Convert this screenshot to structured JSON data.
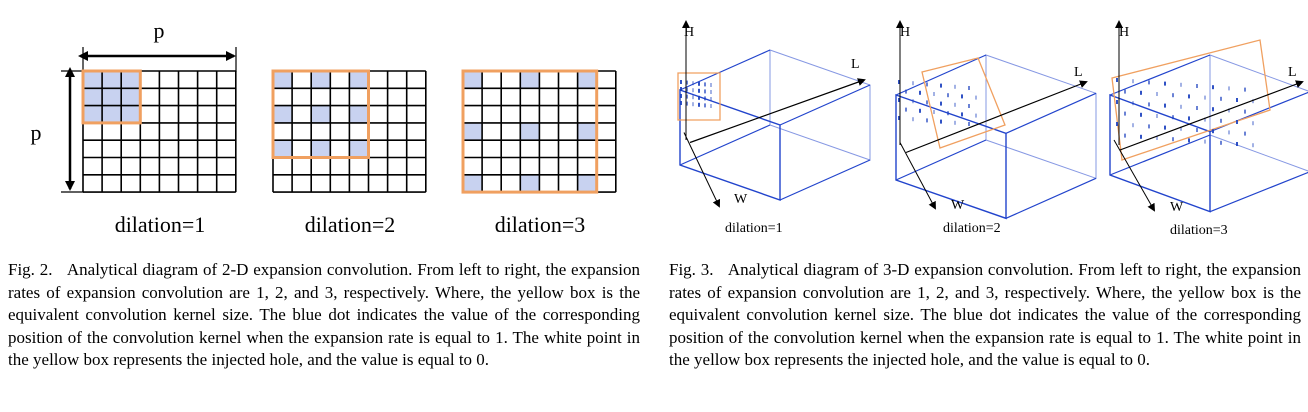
{
  "fig2": {
    "dim_label_top": "p",
    "dim_label_left": "p",
    "panels": [
      {
        "label": "dilation=1",
        "rate": 1
      },
      {
        "label": "dilation=2",
        "rate": 2
      },
      {
        "label": "dilation=3",
        "rate": 3
      }
    ],
    "caption_label": "Fig. 2.",
    "caption_text": "Analytical diagram of 2-D expansion convolution. From left to right, the expansion rates of expansion convolution are 1, 2, and 3, respectively. Where, the yellow box is the equivalent convolution kernel size. The blue dot indicates the value of the corresponding position of the convolution kernel when the expansion rate is equal to 1. The white point in the yellow box represents the injected hole, and the value is equal to 0."
  },
  "fig3": {
    "panels": [
      {
        "label": "dilation=1",
        "axis_h": "H",
        "axis_l": "L",
        "axis_w": "W"
      },
      {
        "label": "dilation=2",
        "axis_h": "H",
        "axis_l": "L",
        "axis_w": "W"
      },
      {
        "label": "dilation=3",
        "axis_h": "H",
        "axis_l": "L",
        "axis_w": "W"
      }
    ],
    "caption_label": "Fig. 3.",
    "caption_text": "Analytical diagram of 3-D expansion convolution. From left to right, the expansion rates of expansion convolution are 1, 2, and 3, respectively. Where, the yellow box is the equivalent convolution kernel size. The blue dot indicates the value of the corresponding position of the convolution kernel when the expansion rate is equal to 1. The white point in the yellow box represents the injected hole, and the value is equal to 0."
  },
  "colors": {
    "grid_line": "#000000",
    "kernel_box": "#f0a060",
    "kernel_fill": "#c8d2f0",
    "cube_edge": "#2244cc",
    "dot": "#1a3fbf"
  }
}
